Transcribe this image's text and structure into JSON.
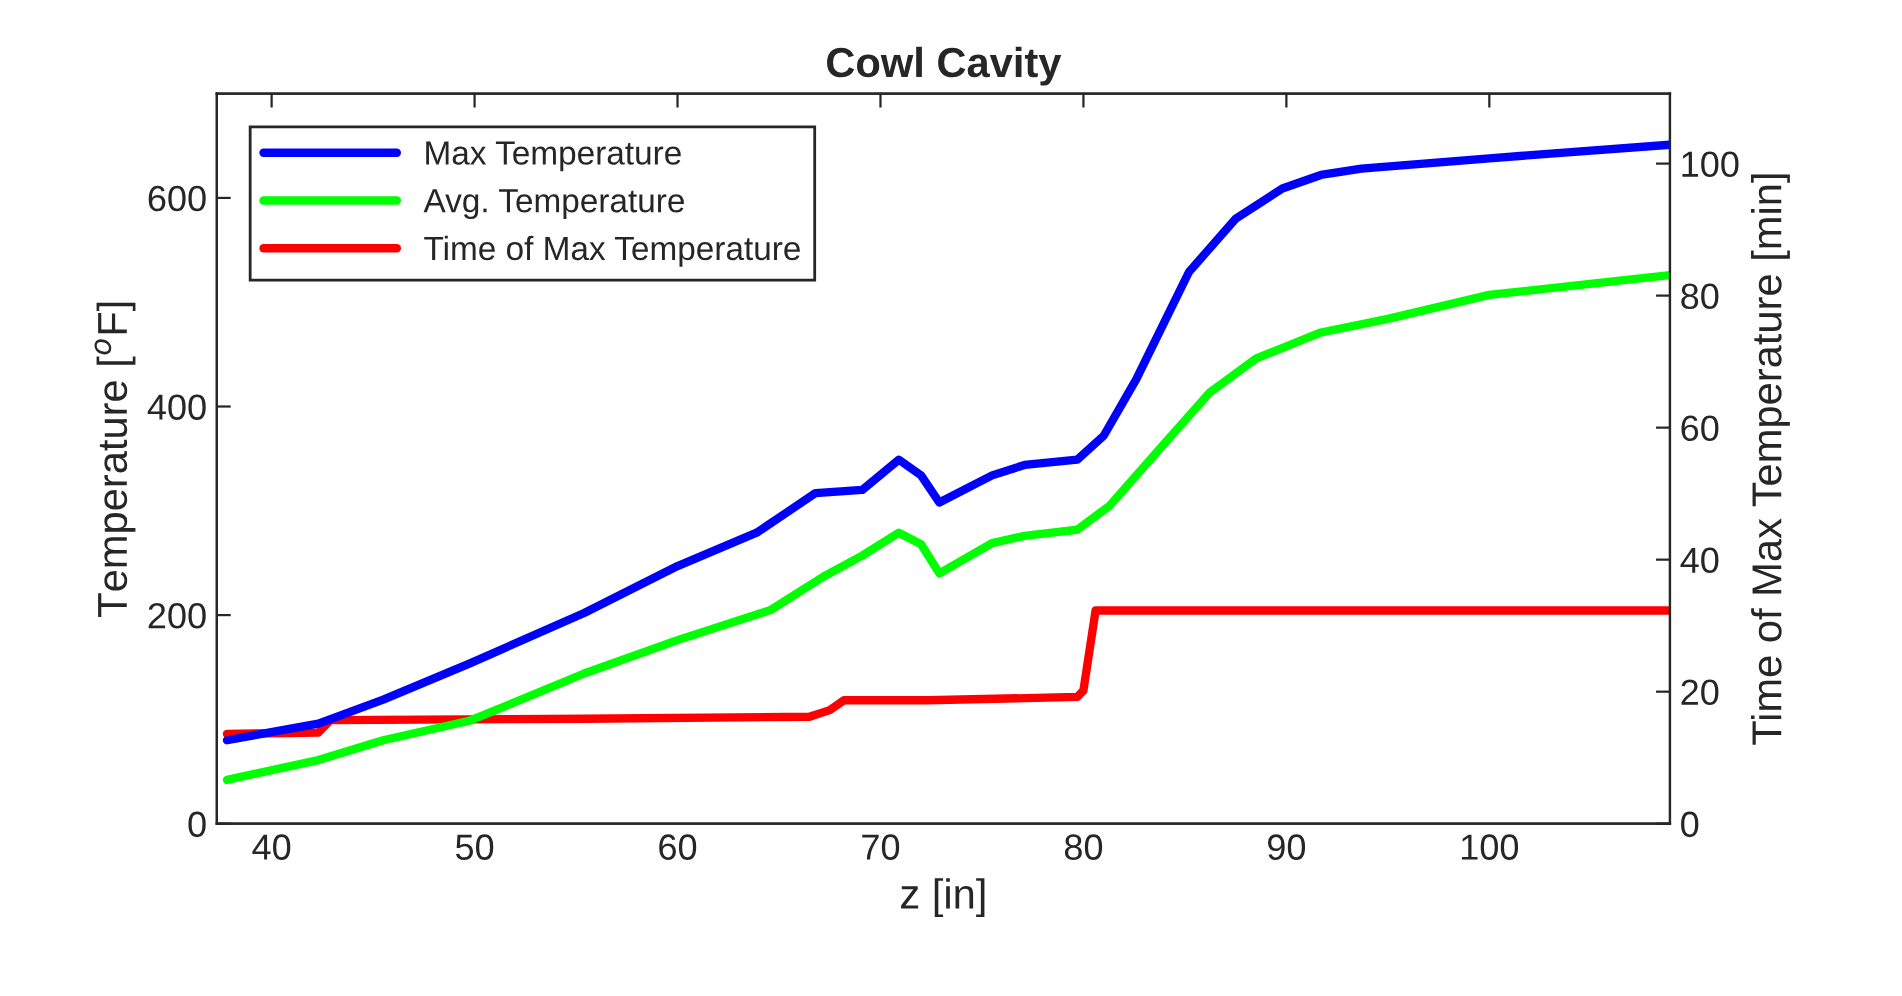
{
  "chart_data": {
    "type": "line",
    "title": "Cowl Cavity",
    "xlabel": "z [in]",
    "ylabel": "Temperature [$^{o}$F]",
    "y2label": "Time of Max Temperature [min]",
    "xlim": [
      37.3,
      108.9
    ],
    "xticks": [
      40,
      50,
      60,
      70,
      80,
      90,
      100
    ],
    "ylim": [
      0,
      700
    ],
    "yticks": [
      0,
      200,
      400,
      600
    ],
    "y2lim": [
      0,
      110.6
    ],
    "y2ticks": [
      0,
      20,
      40,
      60,
      80,
      100
    ],
    "legend": "top left",
    "grid": false,
    "line_style": "solid",
    "marker": "none",
    "series": [
      {
        "name": "Max Temperature",
        "color": "#0000ff",
        "x": [
          37.8,
          42.3,
          45.5,
          49.8,
          55.4,
          60,
          63.9,
          66.8,
          69.1,
          70.9,
          72,
          72.9,
          75.5,
          77.1,
          79.7,
          81,
          82.6,
          85.2,
          87.5,
          89.8,
          91.7,
          93.7,
          100,
          108.9
        ],
        "values": [
          80,
          96,
          119,
          154,
          202,
          247,
          279,
          317,
          320,
          349,
          334,
          308,
          334,
          344,
          349,
          372,
          426,
          529,
          580,
          609,
          622,
          628,
          638,
          651
        ]
      },
      {
        "name": "Avg. Temperature",
        "color": "#00ff00",
        "x": [
          37.8,
          42.3,
          45.5,
          49.8,
          55.4,
          60,
          64.6,
          67.2,
          69.1,
          70.9,
          72,
          72.9,
          75.5,
          77.1,
          79.7,
          81.3,
          83.6,
          86.2,
          88.5,
          91.7,
          95,
          100,
          108.9
        ],
        "values": [
          42,
          61,
          80,
          99,
          144,
          176,
          205,
          237,
          257,
          279,
          268,
          240,
          269,
          276,
          282,
          305,
          356,
          413,
          446,
          471,
          484,
          507,
          526
        ]
      },
      {
        "name": "Time of Max Temperature",
        "color": "#ff0000",
        "axis": "y2",
        "x": [
          37.8,
          42.3,
          42.9,
          55.4,
          66.5,
          67.5,
          68.2,
          72.3,
          79.7,
          80.0,
          80.6,
          108.9
        ],
        "values": [
          13.6,
          13.8,
          15.7,
          15.9,
          16.2,
          17.2,
          18.7,
          18.7,
          19.2,
          20.2,
          32.3,
          32.3
        ]
      }
    ]
  }
}
